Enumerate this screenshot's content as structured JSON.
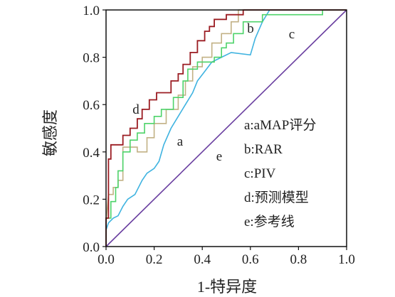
{
  "chart_data": {
    "type": "line",
    "title": "",
    "xlabel": "1-特异度",
    "ylabel": "敏感度",
    "xlim": [
      0,
      1
    ],
    "ylim": [
      0,
      1
    ],
    "x_ticks": [
      "0.0",
      "0.2",
      "0.4",
      "0.6",
      "0.8",
      "1.0"
    ],
    "y_ticks": [
      "0.0",
      "0.2",
      "0.4",
      "0.6",
      "0.8",
      "1.0"
    ],
    "grid": false,
    "legend_position": "bottom-right",
    "legend": [
      "a:aMAP评分",
      "b:RAR",
      "c:PIV",
      "d:预测模型",
      "e:参考线"
    ],
    "series": [
      {
        "name": "a",
        "color": "#3fb3e0",
        "points": [
          [
            0,
            0
          ],
          [
            0,
            0.07
          ],
          [
            0.01,
            0.1
          ],
          [
            0.03,
            0.12
          ],
          [
            0.05,
            0.13
          ],
          [
            0.07,
            0.17
          ],
          [
            0.09,
            0.2
          ],
          [
            0.12,
            0.22
          ],
          [
            0.15,
            0.28
          ],
          [
            0.17,
            0.31
          ],
          [
            0.2,
            0.33
          ],
          [
            0.22,
            0.36
          ],
          [
            0.24,
            0.43
          ],
          [
            0.27,
            0.5
          ],
          [
            0.3,
            0.55
          ],
          [
            0.33,
            0.6
          ],
          [
            0.36,
            0.65
          ],
          [
            0.38,
            0.7
          ],
          [
            0.41,
            0.74
          ],
          [
            0.44,
            0.78
          ],
          [
            0.48,
            0.8
          ],
          [
            0.52,
            0.82
          ],
          [
            0.6,
            0.81
          ],
          [
            0.62,
            0.88
          ],
          [
            0.65,
            0.95
          ],
          [
            0.68,
            1.0
          ],
          [
            1.0,
            1.0
          ]
        ]
      },
      {
        "name": "b",
        "color": "#c2b185",
        "points": [
          [
            0,
            0
          ],
          [
            0,
            0.1
          ],
          [
            0.01,
            0.22
          ],
          [
            0.03,
            0.22
          ],
          [
            0.03,
            0.25
          ],
          [
            0.05,
            0.25
          ],
          [
            0.05,
            0.28
          ],
          [
            0.07,
            0.28
          ],
          [
            0.07,
            0.42
          ],
          [
            0.13,
            0.42
          ],
          [
            0.13,
            0.4
          ],
          [
            0.17,
            0.4
          ],
          [
            0.17,
            0.46
          ],
          [
            0.2,
            0.46
          ],
          [
            0.2,
            0.52
          ],
          [
            0.25,
            0.52
          ],
          [
            0.25,
            0.58
          ],
          [
            0.3,
            0.58
          ],
          [
            0.3,
            0.64
          ],
          [
            0.33,
            0.64
          ],
          [
            0.33,
            0.7
          ],
          [
            0.36,
            0.7
          ],
          [
            0.36,
            0.76
          ],
          [
            0.4,
            0.76
          ],
          [
            0.4,
            0.8
          ],
          [
            0.44,
            0.8
          ],
          [
            0.44,
            0.86
          ],
          [
            0.48,
            0.86
          ],
          [
            0.48,
            0.9
          ],
          [
            0.52,
            0.9
          ],
          [
            0.52,
            0.95
          ],
          [
            0.55,
            0.95
          ],
          [
            0.55,
            1.0
          ],
          [
            0.89,
            1.0
          ],
          [
            0.89,
            1.0
          ],
          [
            1.0,
            1.0
          ]
        ]
      },
      {
        "name": "c",
        "color": "#4ed36a",
        "points": [
          [
            0,
            0
          ],
          [
            0,
            0.12
          ],
          [
            0.02,
            0.12
          ],
          [
            0.02,
            0.19
          ],
          [
            0.04,
            0.19
          ],
          [
            0.04,
            0.25
          ],
          [
            0.05,
            0.25
          ],
          [
            0.05,
            0.32
          ],
          [
            0.07,
            0.32
          ],
          [
            0.07,
            0.4
          ],
          [
            0.1,
            0.4
          ],
          [
            0.1,
            0.45
          ],
          [
            0.13,
            0.45
          ],
          [
            0.13,
            0.48
          ],
          [
            0.16,
            0.48
          ],
          [
            0.16,
            0.52
          ],
          [
            0.2,
            0.52
          ],
          [
            0.2,
            0.55
          ],
          [
            0.23,
            0.55
          ],
          [
            0.23,
            0.58
          ],
          [
            0.28,
            0.58
          ],
          [
            0.28,
            0.63
          ],
          [
            0.32,
            0.63
          ],
          [
            0.32,
            0.7
          ],
          [
            0.34,
            0.7
          ],
          [
            0.34,
            0.75
          ],
          [
            0.38,
            0.75
          ],
          [
            0.38,
            0.78
          ],
          [
            0.45,
            0.78
          ],
          [
            0.45,
            0.8
          ],
          [
            0.48,
            0.8
          ],
          [
            0.48,
            0.84
          ],
          [
            0.5,
            0.84
          ],
          [
            0.5,
            0.86
          ],
          [
            0.53,
            0.86
          ],
          [
            0.53,
            0.9
          ],
          [
            0.57,
            0.9
          ],
          [
            0.57,
            0.95
          ],
          [
            0.65,
            0.95
          ],
          [
            0.65,
            0.98
          ],
          [
            0.9,
            0.98
          ],
          [
            0.9,
            1.0
          ],
          [
            1.0,
            1.0
          ]
        ]
      },
      {
        "name": "d",
        "color": "#9b1c22",
        "points": [
          [
            0,
            0
          ],
          [
            0,
            0.12
          ],
          [
            0.01,
            0.12
          ],
          [
            0.01,
            0.37
          ],
          [
            0.02,
            0.37
          ],
          [
            0.02,
            0.43
          ],
          [
            0.07,
            0.43
          ],
          [
            0.07,
            0.47
          ],
          [
            0.1,
            0.47
          ],
          [
            0.1,
            0.5
          ],
          [
            0.13,
            0.5
          ],
          [
            0.13,
            0.54
          ],
          [
            0.15,
            0.54
          ],
          [
            0.15,
            0.58
          ],
          [
            0.18,
            0.58
          ],
          [
            0.18,
            0.62
          ],
          [
            0.21,
            0.62
          ],
          [
            0.21,
            0.65
          ],
          [
            0.27,
            0.65
          ],
          [
            0.27,
            0.7
          ],
          [
            0.3,
            0.7
          ],
          [
            0.3,
            0.73
          ],
          [
            0.32,
            0.73
          ],
          [
            0.32,
            0.77
          ],
          [
            0.35,
            0.77
          ],
          [
            0.35,
            0.82
          ],
          [
            0.38,
            0.82
          ],
          [
            0.38,
            0.87
          ],
          [
            0.41,
            0.87
          ],
          [
            0.41,
            0.91
          ],
          [
            0.43,
            0.91
          ],
          [
            0.43,
            0.93
          ],
          [
            0.45,
            0.93
          ],
          [
            0.45,
            0.96
          ],
          [
            0.5,
            0.96
          ],
          [
            0.5,
            0.98
          ],
          [
            0.57,
            0.98
          ],
          [
            0.57,
            1.0
          ],
          [
            1.0,
            1.0
          ]
        ]
      },
      {
        "name": "e",
        "color": "#6a3fa0",
        "points": [
          [
            0,
            0
          ],
          [
            1,
            1
          ]
        ]
      }
    ],
    "curve_labels": [
      "a",
      "b",
      "c",
      "d",
      "e"
    ]
  }
}
